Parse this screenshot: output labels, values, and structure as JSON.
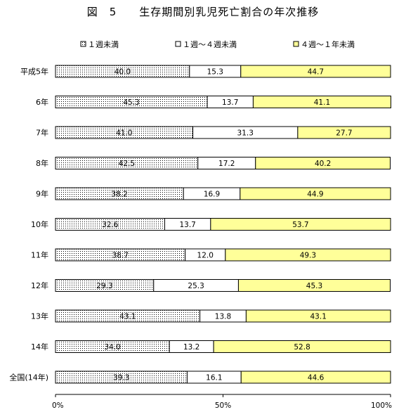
{
  "title": "図　5　　生存期間別乳児死亡割合の年次推移",
  "colors": {
    "seg1_pattern_dot": "#000000",
    "seg1_pattern_bg": "#ffffff",
    "seg2": "#ffffff",
    "seg3": "#ffff99",
    "border": "#000000"
  },
  "chart_data": {
    "type": "bar",
    "orientation": "horizontal",
    "stacked": true,
    "percent_stacked": true,
    "title": "図　5　　生存期間別乳児死亡割合の年次推移",
    "categories": [
      "平成5年",
      "6年",
      "7年",
      "8年",
      "9年",
      "10年",
      "11年",
      "12年",
      "13年",
      "14年",
      "全国(14年)"
    ],
    "series": [
      {
        "name": "１週未満",
        "values": [
          40.0,
          45.3,
          41.0,
          42.5,
          38.2,
          32.6,
          38.7,
          29.3,
          43.1,
          34.0,
          39.3
        ]
      },
      {
        "name": "１週～４週未満",
        "values": [
          15.3,
          13.7,
          31.3,
          17.2,
          16.9,
          13.7,
          12.0,
          25.3,
          13.8,
          13.2,
          16.1
        ]
      },
      {
        "name": "４週～１年未満",
        "values": [
          44.7,
          41.1,
          27.7,
          40.2,
          44.9,
          53.7,
          49.3,
          45.3,
          43.1,
          52.8,
          44.6
        ]
      }
    ],
    "xlim": [
      0,
      100
    ],
    "xticks": [
      "0%",
      "50%",
      "100%"
    ],
    "xlabel": "",
    "ylabel": "",
    "grid": false,
    "legend_position": "top"
  }
}
